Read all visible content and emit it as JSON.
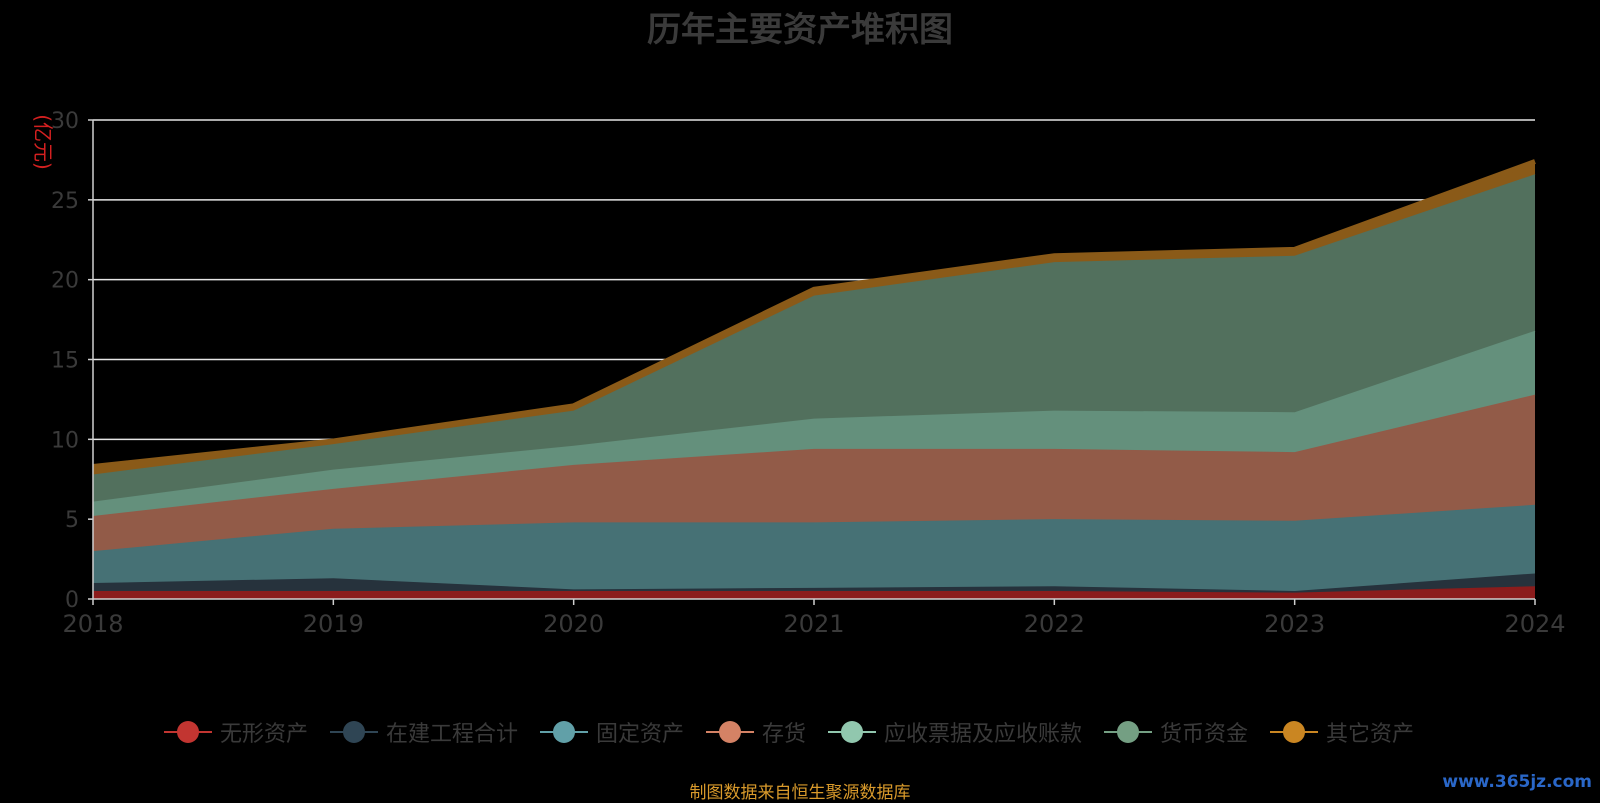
{
  "chart_data": {
    "type": "area",
    "stacked": true,
    "title": "历年主要资产堆积图",
    "ylabel": "(亿元)",
    "ylim": [
      0,
      30
    ],
    "yticks": [
      0,
      5,
      10,
      15,
      20,
      25,
      30
    ],
    "x": [
      "2018",
      "2019",
      "2020",
      "2021",
      "2022",
      "2023",
      "2024"
    ],
    "grid": true,
    "legend_position": "bottom",
    "series": [
      {
        "name": "无形资产",
        "color": "#c23531",
        "fill": "#8b1c1c",
        "values": [
          0.5,
          0.5,
          0.5,
          0.5,
          0.5,
          0.4,
          0.8
        ]
      },
      {
        "name": "在建工程合计",
        "color": "#2f4554",
        "fill": "#26323c",
        "values": [
          0.5,
          0.8,
          0.1,
          0.2,
          0.3,
          0.1,
          0.8
        ]
      },
      {
        "name": "固定资产",
        "color": "#61a0a8",
        "fill": "#467175",
        "values": [
          2.0,
          3.1,
          4.2,
          4.1,
          4.2,
          4.4,
          4.3
        ]
      },
      {
        "name": "存货",
        "color": "#d48265",
        "fill": "#925b48",
        "values": [
          2.2,
          2.5,
          3.6,
          4.6,
          4.4,
          4.3,
          6.9
        ]
      },
      {
        "name": "应收票据及应收账款",
        "color": "#91c7ae",
        "fill": "#64907c",
        "values": [
          0.9,
          1.2,
          1.2,
          1.9,
          2.4,
          2.5,
          4.0
        ]
      },
      {
        "name": "货币资金",
        "color": "#749f83",
        "fill": "#52705d",
        "values": [
          1.7,
          1.6,
          2.2,
          7.7,
          9.3,
          9.8,
          9.8
        ]
      },
      {
        "name": "其它资产",
        "color": "#ca8622",
        "fill": "#8a5a18",
        "values": [
          0.5,
          0.2,
          0.3,
          0.4,
          0.4,
          0.4,
          0.8
        ]
      }
    ]
  },
  "source_text": "制图数据来自恒生聚源数据库",
  "watermark": "www.365jz.com"
}
